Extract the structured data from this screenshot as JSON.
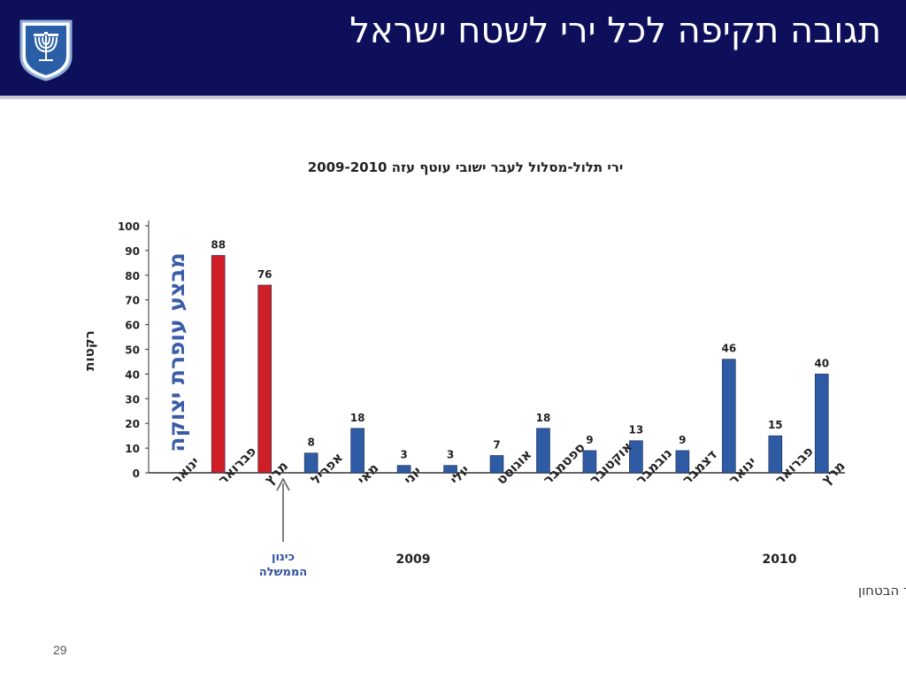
{
  "slide": {
    "title": "תגובה תקיפה לכל ירי לשטח ישראל",
    "page_number": "29"
  },
  "colors": {
    "header_bg": "#0d0f5a",
    "bar_red": "#d01e26",
    "bar_blue": "#2e5ba3",
    "operation_label": "#3a5ca8"
  },
  "icons": {
    "emblem": "menorah-emblem-icon"
  },
  "chart_data": {
    "type": "bar",
    "title": "ירי תלול-מסלול לעבר ישובי עוטף עזה 2009-2010",
    "ylabel": "רקטות",
    "ylim": [
      0,
      100
    ],
    "yticks": [
      0,
      10,
      20,
      30,
      40,
      50,
      60,
      70,
      80,
      90,
      100
    ],
    "categories": [
      "ינואר",
      "פברואר",
      "מרץ",
      "אפריל",
      "מאי",
      "יוני",
      "יולי",
      "אוגוסט",
      "ספטמבר",
      "אוקטובר",
      "נובמבר",
      "דצמבר",
      "ינואר",
      "פברואר",
      "מרץ"
    ],
    "values": [
      null,
      88,
      76,
      8,
      18,
      3,
      3,
      7,
      18,
      9,
      13,
      9,
      46,
      15,
      40
    ],
    "bar_colors": [
      "none",
      "red",
      "red",
      "blue",
      "blue",
      "blue",
      "blue",
      "blue",
      "blue",
      "blue",
      "blue",
      "blue",
      "blue",
      "blue",
      "blue"
    ],
    "year_labels": [
      "2009",
      "2010"
    ],
    "annotations": {
      "operation": "מבצע עופרת יצוקה",
      "government_line1": "כינון",
      "government_line2": "הממשלה"
    },
    "source": "מקור: משרד הבטחון"
  }
}
